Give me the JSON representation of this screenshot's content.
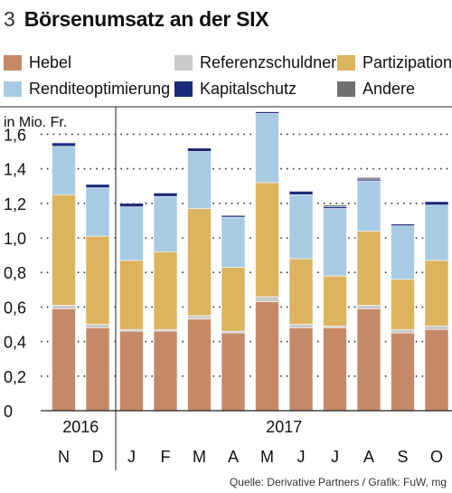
{
  "figure": {
    "number": "3",
    "title": "Börsenumsatz an der SIX",
    "source": "Quelle: Derivative Partners / Grafik: FuW, mg"
  },
  "colors": {
    "Hebel": "#c48a67",
    "Referenzschuldner": "#c9c9c9",
    "Partizipation": "#dcb45e",
    "Renditeoptimierung": "#a8cbe3",
    "Kapitalschutz": "#1c2a7a",
    "Andere": "#707070"
  },
  "chart_data": {
    "type": "bar",
    "stacked": true,
    "unit_label": "in Mio. Fr.",
    "ylim": [
      0,
      1.75
    ],
    "yticks": [
      "0",
      "0,2",
      "0,4",
      "0,6",
      "0,8",
      "1,0",
      "1,2",
      "1,4",
      "1,6"
    ],
    "ytick_values": [
      0,
      0.2,
      0.4,
      0.6,
      0.8,
      1.0,
      1.2,
      1.4,
      1.6
    ],
    "grid": "dotted horizontal",
    "categories": [
      "N",
      "D",
      "J",
      "F",
      "M",
      "A",
      "M",
      "J",
      "J",
      "A",
      "S",
      "O"
    ],
    "year_labels": [
      "2016",
      "2017"
    ],
    "year_spans": [
      [
        0,
        1
      ],
      [
        2,
        11
      ]
    ],
    "series": [
      {
        "name": "Hebel",
        "values": [
          0.59,
          0.48,
          0.46,
          0.46,
          0.53,
          0.45,
          0.63,
          0.48,
          0.48,
          0.59,
          0.45,
          0.47
        ]
      },
      {
        "name": "Referenzschuldner",
        "values": [
          0.02,
          0.02,
          0.01,
          0.01,
          0.02,
          0.01,
          0.03,
          0.02,
          0.01,
          0.02,
          0.02,
          0.02
        ]
      },
      {
        "name": "Partizipation",
        "values": [
          0.64,
          0.51,
          0.4,
          0.45,
          0.62,
          0.37,
          0.66,
          0.38,
          0.29,
          0.43,
          0.29,
          0.38
        ]
      },
      {
        "name": "Renditeoptimierung",
        "values": [
          0.28,
          0.28,
          0.31,
          0.32,
          0.33,
          0.29,
          0.4,
          0.37,
          0.39,
          0.29,
          0.31,
          0.32
        ]
      },
      {
        "name": "Kapitalschutz",
        "values": [
          0.02,
          0.02,
          0.02,
          0.02,
          0.02,
          0.01,
          0.01,
          0.02,
          0.01,
          0.01,
          0.01,
          0.02
        ]
      },
      {
        "name": "Andere",
        "values": [
          0.0,
          0.0,
          0.0,
          0.0,
          0.0,
          0.0,
          0.0,
          0.0,
          0.01,
          0.01,
          0.0,
          0.0
        ]
      }
    ]
  },
  "legend": [
    {
      "label": "Hebel",
      "color": "#c48a67"
    },
    {
      "label": "Referenzschuldner",
      "color": "#c9c9c9"
    },
    {
      "label": "Partizipation",
      "color": "#dcb45e"
    },
    {
      "label": "Renditeoptimierung",
      "color": "#a8cbe3"
    },
    {
      "label": "Kapitalschutz",
      "color": "#1c2a7a"
    },
    {
      "label": "Andere",
      "color": "#707070"
    }
  ]
}
